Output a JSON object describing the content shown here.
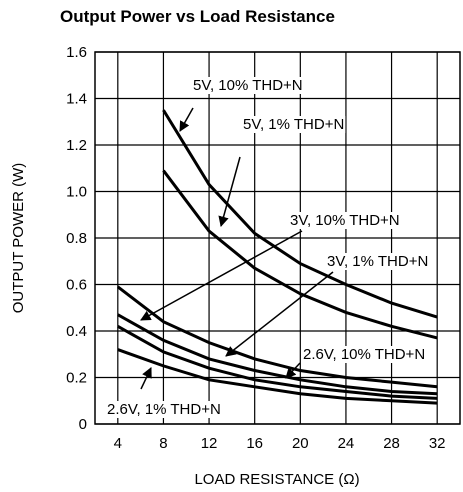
{
  "chart_data": {
    "type": "line",
    "title": "Output Power vs Load Resistance",
    "x_label": "LOAD RESISTANCE (Ω)",
    "y_label": "OUTPUT POWER (W)",
    "x": [
      4,
      8,
      12,
      16,
      20,
      24,
      28,
      32
    ],
    "series": [
      {
        "name": "5V, 10% THD+N",
        "color": "#000000",
        "values": [
          null,
          1.35,
          1.03,
          0.82,
          0.69,
          0.6,
          0.52,
          0.46
        ]
      },
      {
        "name": "5V, 1% THD+N",
        "color": "#000000",
        "values": [
          null,
          1.09,
          0.83,
          0.67,
          0.56,
          0.48,
          0.42,
          0.37
        ]
      },
      {
        "name": "3V, 10% THD+N",
        "color": "#000000",
        "values": [
          0.59,
          0.44,
          0.35,
          0.28,
          0.23,
          0.2,
          0.18,
          0.16
        ]
      },
      {
        "name": "3V, 1% THD+N",
        "color": "#000000",
        "values": [
          0.47,
          0.36,
          0.28,
          0.23,
          0.19,
          0.16,
          0.14,
          0.13
        ]
      },
      {
        "name": "2.6V, 10% THD+N",
        "color": "#000000",
        "values": [
          0.42,
          0.31,
          0.24,
          0.19,
          0.16,
          0.14,
          0.12,
          0.11
        ]
      },
      {
        "name": "2.6V, 1% THD+N",
        "color": "#000000",
        "values": [
          0.32,
          0.25,
          0.19,
          0.16,
          0.13,
          0.11,
          0.1,
          0.09
        ]
      }
    ],
    "xlim": [
      2,
      34
    ],
    "xticks": [
      4,
      8,
      12,
      16,
      20,
      24,
      28,
      32
    ],
    "ylim": [
      0,
      1.6
    ],
    "yticks": [
      0,
      0.2,
      0.4,
      0.6,
      0.8,
      {
        "value": 1,
        "label": "1.0"
      },
      1.2,
      1.4,
      1.6
    ],
    "grid": true
  }
}
